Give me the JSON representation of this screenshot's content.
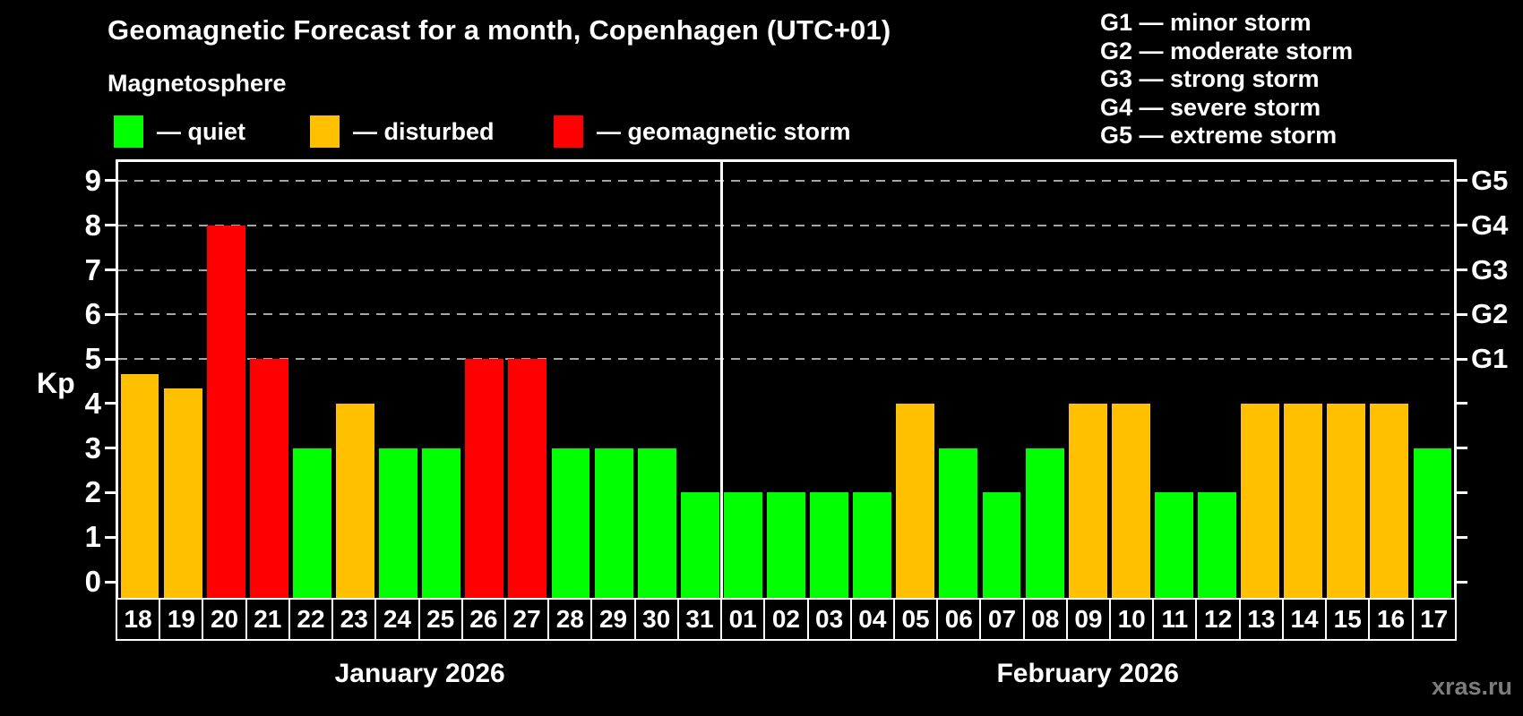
{
  "title": "Geomagnetic Forecast for a month, Copenhagen (UTC+01)",
  "subtitle": "Magnetosphere",
  "legend": {
    "items": [
      {
        "key": "quiet",
        "label": "— quiet",
        "color": "#00ff00"
      },
      {
        "key": "disturbed",
        "label": "— disturbed",
        "color": "#ffc000"
      },
      {
        "key": "storm",
        "label": "— geomagnetic storm",
        "color": "#ff0000"
      }
    ]
  },
  "g_legend": [
    "G1 — minor storm",
    "G2 — moderate storm",
    "G3 — strong storm",
    "G4 — severe storm",
    "G5 — extreme storm"
  ],
  "watermark": "xras.ru",
  "chart_data": {
    "type": "bar",
    "title": "Geomagnetic Forecast for a month, Copenhagen (UTC+01)",
    "ylabel": "Kp",
    "ylim": [
      0,
      9
    ],
    "yticks": [
      0,
      1,
      2,
      3,
      4,
      5,
      6,
      7,
      8,
      9
    ],
    "gridlines_at": [
      5,
      6,
      7,
      8,
      9
    ],
    "grid": "dashed, only at storm levels G1–G5",
    "legend_position": "top",
    "g_axis": [
      {
        "label": "G1",
        "kp": 5
      },
      {
        "label": "G2",
        "kp": 6
      },
      {
        "label": "G3",
        "kp": 7
      },
      {
        "label": "G4",
        "kp": 8
      },
      {
        "label": "G5",
        "kp": 9
      }
    ],
    "level_colors": {
      "quiet": "#00ff00",
      "disturbed": "#ffc000",
      "storm": "#ff0000"
    },
    "months": [
      {
        "label": "January 2026",
        "days": [
          "18",
          "19",
          "20",
          "21",
          "22",
          "23",
          "24",
          "25",
          "26",
          "27",
          "28",
          "29",
          "30",
          "31"
        ],
        "values": [
          4.67,
          4.33,
          8,
          5,
          3,
          4,
          3,
          3,
          5,
          5,
          3,
          3,
          3,
          2
        ],
        "levels": [
          "disturbed",
          "disturbed",
          "storm",
          "storm",
          "quiet",
          "disturbed",
          "quiet",
          "quiet",
          "storm",
          "storm",
          "quiet",
          "quiet",
          "quiet",
          "quiet"
        ]
      },
      {
        "label": "February 2026",
        "days": [
          "01",
          "02",
          "03",
          "04",
          "05",
          "06",
          "07",
          "08",
          "09",
          "10",
          "11",
          "12",
          "13",
          "14",
          "15",
          "16",
          "17"
        ],
        "values": [
          2,
          2,
          2,
          2,
          4,
          3,
          2,
          3,
          4,
          4,
          2,
          2,
          4,
          4,
          4,
          4,
          3
        ],
        "levels": [
          "quiet",
          "quiet",
          "quiet",
          "quiet",
          "disturbed",
          "quiet",
          "quiet",
          "quiet",
          "disturbed",
          "disturbed",
          "quiet",
          "quiet",
          "disturbed",
          "disturbed",
          "disturbed",
          "disturbed",
          "quiet"
        ]
      }
    ]
  }
}
